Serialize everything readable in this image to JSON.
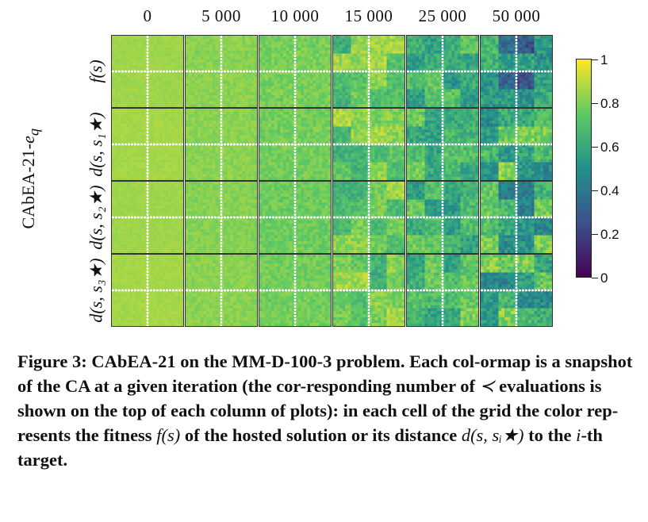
{
  "figure": {
    "method_label_main": "CAbEA-21-",
    "method_label_sub": "e",
    "method_label_subsub": "q",
    "columns": [
      "0",
      "5 000",
      "10 000",
      "15 000",
      "25 000",
      "50 000"
    ],
    "rows": [
      {
        "label": "f(s)"
      },
      {
        "label": "d(s, s₁★)"
      },
      {
        "label": "d(s, s₂★)"
      },
      {
        "label": "d(s, s₃★)"
      }
    ],
    "colorbar": {
      "colormap": "viridis",
      "ticks": [
        "0",
        "0.2",
        "0.4",
        "0.6",
        "0.8",
        "1"
      ],
      "range": [
        0,
        1
      ]
    },
    "panel_mean_values": [
      [
        0.85,
        0.82,
        0.79,
        0.74,
        0.62,
        0.46
      ],
      [
        0.86,
        0.82,
        0.78,
        0.76,
        0.68,
        0.6
      ],
      [
        0.85,
        0.81,
        0.77,
        0.74,
        0.66,
        0.58
      ],
      [
        0.86,
        0.82,
        0.78,
        0.75,
        0.68,
        0.62
      ]
    ]
  },
  "caption": {
    "part1": "Figure 3: CAbEA-21 on the MM-D-100-3 problem. Each col-ormap is a snapshot of the CA at a given iteration (the cor-responding number of ",
    "prec": "≺",
    "part2": " evaluations is shown on the top of each column of plots): in each cell of the grid the color rep-resents the fitness ",
    "math1": "f(s)",
    "part3": " of the hosted solution or its distance ",
    "math2": "d(s, sᵢ★)",
    "part4": " to the ",
    "math3": "i",
    "part5": "-th target."
  }
}
